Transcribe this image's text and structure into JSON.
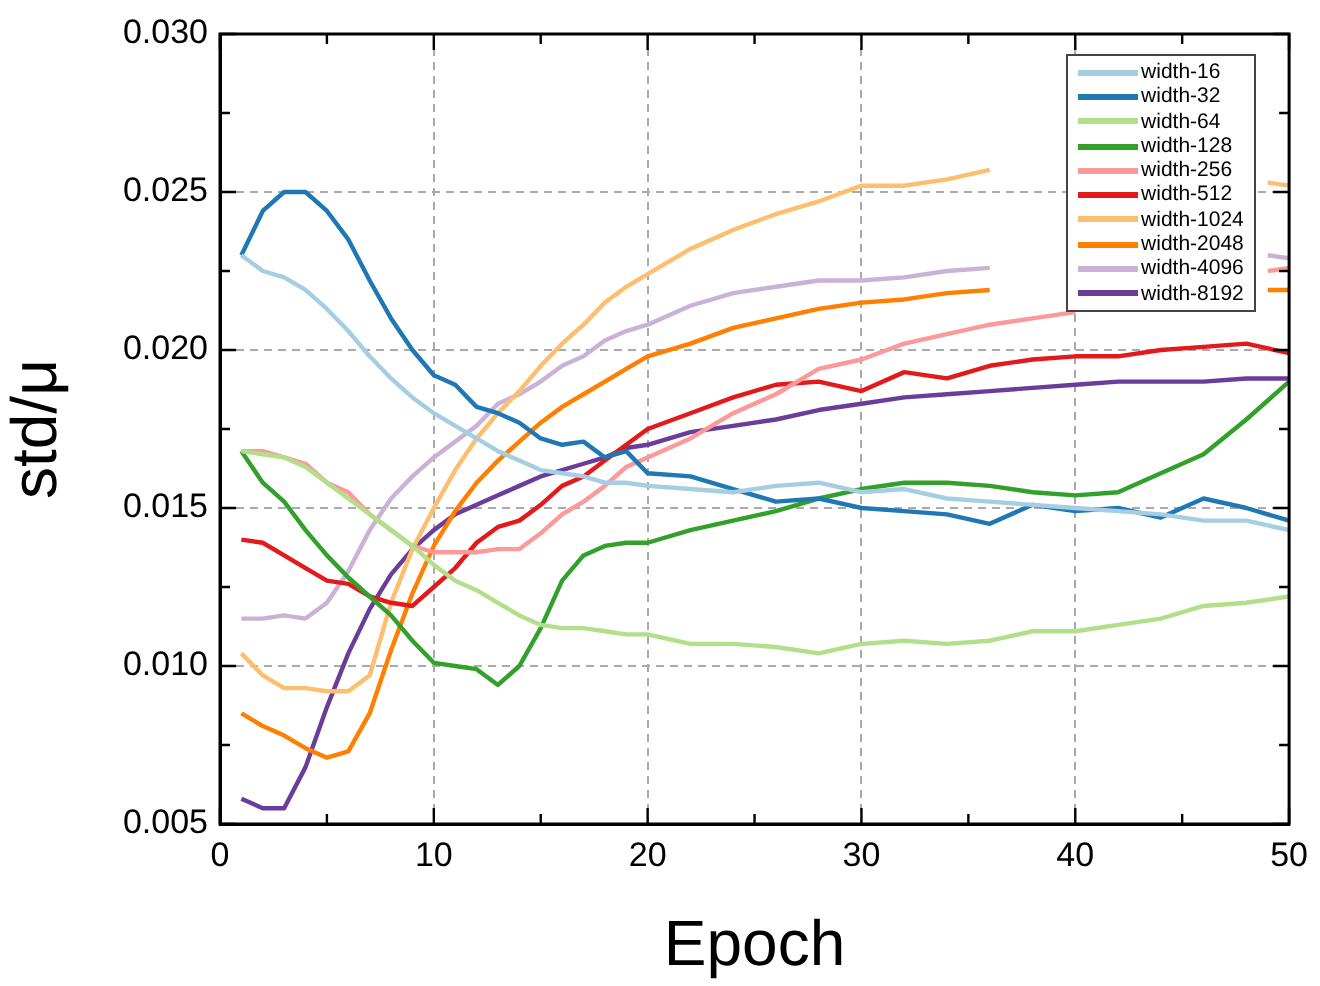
{
  "chart_data": {
    "type": "line",
    "xlabel": "Epoch",
    "ylabel": "std/μ",
    "x": [
      1,
      2,
      3,
      4,
      5,
      6,
      7,
      8,
      9,
      10,
      11,
      12,
      13,
      14,
      15,
      16,
      17,
      18,
      19,
      20,
      22,
      24,
      26,
      28,
      30,
      32,
      34,
      36,
      38,
      40,
      42,
      44,
      46,
      48,
      50
    ],
    "xlim": [
      0,
      50
    ],
    "xticks": [
      0,
      {
        "value": 5,
        "label": null
      },
      10,
      {
        "value": 15,
        "label": null
      },
      20,
      {
        "value": 25,
        "label": null
      },
      30,
      {
        "value": 35,
        "label": null
      },
      40,
      {
        "value": 45,
        "label": null
      },
      50
    ],
    "ylim": [
      0.005,
      0.03
    ],
    "yticks": [
      0.005,
      {
        "value": 0.0075,
        "label": null
      },
      {
        "value": 0.01,
        "label": "0.010"
      },
      {
        "value": 0.0125,
        "label": null
      },
      0.015,
      {
        "value": 0.0175,
        "label": null
      },
      {
        "value": 0.02,
        "label": "0.020"
      },
      {
        "value": 0.0225,
        "label": null
      },
      0.025,
      {
        "value": 0.0275,
        "label": null
      },
      {
        "value": 0.03,
        "label": "0.030"
      }
    ],
    "grid": true,
    "legend": "top right",
    "marker": "none",
    "line_style": "solid",
    "series": [
      {
        "name": "width-16",
        "color": "#a6cee3",
        "values": [
          0.023,
          0.0225,
          0.0223,
          0.0219,
          0.0213,
          0.0206,
          0.0198,
          0.0191,
          0.0185,
          0.018,
          0.0176,
          0.0172,
          0.0168,
          0.0165,
          0.0162,
          0.0161,
          0.016,
          0.0158,
          0.0158,
          0.0157,
          0.0156,
          0.0155,
          0.0157,
          0.0158,
          0.0155,
          0.0156,
          0.0153,
          0.0152,
          0.0151,
          0.015,
          0.0149,
          0.0148,
          0.0146,
          0.0146,
          0.0143
        ]
      },
      {
        "name": "width-32",
        "color": "#1f78b4",
        "values": [
          0.023,
          0.0244,
          0.025,
          0.025,
          0.0244,
          0.0235,
          0.0222,
          0.021,
          0.02,
          0.0192,
          0.0189,
          0.0182,
          0.018,
          0.0177,
          0.0172,
          0.017,
          0.0171,
          0.0166,
          0.0168,
          0.0161,
          0.016,
          0.0156,
          0.0152,
          0.0153,
          0.015,
          0.0149,
          0.0148,
          0.0145,
          0.0151,
          0.0149,
          0.015,
          0.0147,
          0.0153,
          0.015,
          0.0146
        ]
      },
      {
        "name": "width-64",
        "color": "#b2df8a",
        "values": [
          0.0168,
          0.0167,
          0.0166,
          0.0163,
          0.0158,
          0.0153,
          0.0148,
          0.0143,
          0.0138,
          0.0132,
          0.0127,
          0.0124,
          0.012,
          0.0116,
          0.0113,
          0.0112,
          0.0112,
          0.0111,
          0.011,
          0.011,
          0.0107,
          0.0107,
          0.0106,
          0.0104,
          0.0107,
          0.0108,
          0.0107,
          0.0108,
          0.0111,
          0.0111,
          0.0113,
          0.0115,
          0.0119,
          0.012,
          0.0122
        ]
      },
      {
        "name": "width-128",
        "color": "#33a02c",
        "values": [
          0.0168,
          0.0158,
          0.0152,
          0.0143,
          0.0135,
          0.0128,
          0.0122,
          0.0116,
          0.0108,
          0.0101,
          0.01,
          0.0099,
          0.0094,
          0.01,
          0.0112,
          0.0127,
          0.0135,
          0.0138,
          0.0139,
          0.0139,
          0.0143,
          0.0146,
          0.0149,
          0.0153,
          0.0156,
          0.0158,
          0.0158,
          0.0157,
          0.0155,
          0.0154,
          0.0155,
          0.0161,
          0.0167,
          0.0178,
          0.019
        ]
      },
      {
        "name": "width-256",
        "color": "#fb9a99",
        "x": [
          1,
          2,
          3,
          4,
          5,
          6,
          7,
          8,
          9,
          10,
          11,
          12,
          13,
          14,
          15,
          16,
          17,
          18,
          19,
          20,
          22,
          24,
          26,
          28,
          30,
          32,
          34,
          36,
          38,
          40,
          42,
          44,
          46,
          49,
          50
        ],
        "values": [
          0.0168,
          0.0168,
          0.0166,
          0.0164,
          0.0158,
          0.0155,
          0.0148,
          0.0143,
          0.0138,
          0.0136,
          0.0136,
          0.0136,
          0.0137,
          0.0137,
          0.0142,
          0.0148,
          0.0152,
          0.0157,
          0.0163,
          0.0166,
          0.0172,
          0.018,
          0.0186,
          0.0194,
          0.0197,
          0.0202,
          0.0205,
          0.0208,
          0.021,
          0.0212,
          null,
          null,
          null,
          0.0225,
          0.0226
        ]
      },
      {
        "name": "width-512",
        "color": "#e31a1c",
        "values": [
          0.014,
          0.0139,
          0.0135,
          0.0131,
          0.0127,
          0.0126,
          0.0122,
          0.012,
          0.0119,
          0.0125,
          0.0131,
          0.0139,
          0.0144,
          0.0146,
          0.0151,
          0.0157,
          0.016,
          0.0165,
          0.017,
          0.0175,
          0.018,
          0.0185,
          0.0189,
          0.019,
          0.0187,
          0.0193,
          0.0191,
          0.0195,
          0.0197,
          0.0198,
          0.0198,
          0.02,
          0.0201,
          0.0202,
          0.0199
        ]
      },
      {
        "name": "width-1024",
        "color": "#fdbf6f",
        "x": [
          1,
          2,
          3,
          4,
          5,
          6,
          7,
          8,
          9,
          10,
          11,
          12,
          13,
          14,
          15,
          16,
          17,
          18,
          19,
          20,
          22,
          24,
          26,
          28,
          30,
          32,
          34,
          36,
          38,
          40,
          42,
          44,
          46,
          49,
          50
        ],
        "values": [
          0.0104,
          0.0097,
          0.0093,
          0.0093,
          0.0092,
          0.0092,
          0.0097,
          0.012,
          0.0137,
          0.015,
          0.0162,
          0.0172,
          0.018,
          0.0187,
          0.0195,
          0.0202,
          0.0208,
          0.0215,
          0.022,
          0.0224,
          0.0232,
          0.0238,
          0.0243,
          0.0247,
          0.0252,
          0.0252,
          0.0254,
          0.0257,
          null,
          null,
          null,
          null,
          null,
          0.0253,
          0.0252
        ]
      },
      {
        "name": "width-2048",
        "color": "#ff7f00",
        "x": [
          1,
          2,
          3,
          4,
          5,
          6,
          7,
          8,
          9,
          10,
          11,
          12,
          13,
          14,
          15,
          16,
          17,
          18,
          19,
          20,
          22,
          24,
          26,
          28,
          30,
          32,
          34,
          36,
          38,
          40,
          42,
          44,
          46,
          49,
          50
        ],
        "values": [
          0.0085,
          0.0081,
          0.0078,
          0.0074,
          0.0071,
          0.0073,
          0.0085,
          0.0105,
          0.0123,
          0.0138,
          0.0149,
          0.0158,
          0.0165,
          0.0171,
          0.0177,
          0.0182,
          0.0186,
          0.019,
          0.0194,
          0.0198,
          0.0202,
          0.0207,
          0.021,
          0.0213,
          0.0215,
          0.0216,
          0.0218,
          0.0219,
          null,
          null,
          null,
          null,
          null,
          0.0219,
          0.0219
        ]
      },
      {
        "name": "width-4096",
        "color": "#cab2d6",
        "x": [
          1,
          2,
          3,
          4,
          5,
          6,
          7,
          8,
          9,
          10,
          11,
          12,
          13,
          14,
          15,
          16,
          17,
          18,
          19,
          20,
          22,
          24,
          26,
          28,
          30,
          32,
          34,
          36,
          38,
          40,
          42,
          44,
          46,
          49,
          50
        ],
        "values": [
          0.0115,
          0.0115,
          0.0116,
          0.0115,
          0.012,
          0.013,
          0.0143,
          0.0153,
          0.016,
          0.0166,
          0.0171,
          0.0176,
          0.0183,
          0.0186,
          0.019,
          0.0195,
          0.0198,
          0.0203,
          0.0206,
          0.0208,
          0.0214,
          0.0218,
          0.022,
          0.0222,
          0.0222,
          0.0223,
          0.0225,
          0.0226,
          null,
          null,
          null,
          null,
          null,
          0.023,
          0.0229
        ]
      },
      {
        "name": "width-8192",
        "color": "#6a3d9a",
        "values": [
          0.0058,
          0.0055,
          0.0055,
          0.0068,
          0.0087,
          0.0104,
          0.0118,
          0.0129,
          0.0137,
          0.0143,
          0.0148,
          0.0151,
          0.0154,
          0.0157,
          0.016,
          0.0162,
          0.0164,
          0.0166,
          0.0169,
          0.017,
          0.0174,
          0.0176,
          0.0178,
          0.0181,
          0.0183,
          0.0185,
          0.0186,
          0.0187,
          0.0188,
          0.0189,
          0.019,
          0.019,
          0.019,
          0.0191,
          0.0191
        ]
      }
    ]
  }
}
